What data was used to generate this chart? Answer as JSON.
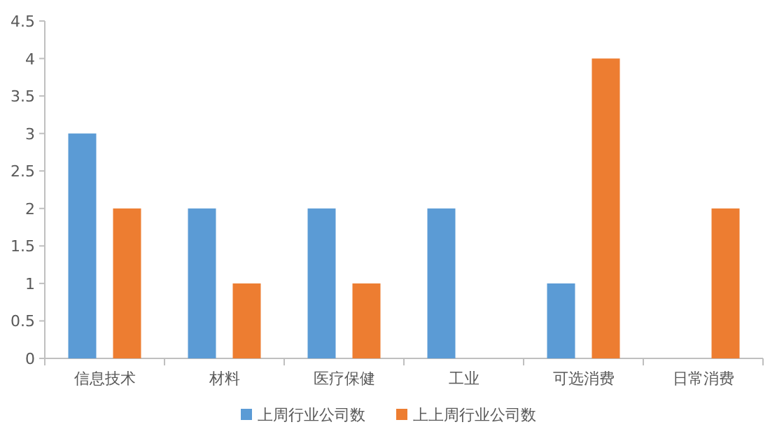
{
  "chart_data": {
    "type": "bar",
    "categories": [
      "信息技术",
      "材料",
      "医疗保健",
      "工业",
      "可选消费",
      "日常消费"
    ],
    "series": [
      {
        "name": "上周行业公司数",
        "color": "#5b9bd5",
        "values": [
          3,
          2,
          2,
          2,
          1,
          null
        ]
      },
      {
        "name": "上上周行业公司数",
        "color": "#ed7d31",
        "values": [
          2,
          1,
          1,
          null,
          4,
          2
        ]
      }
    ],
    "ylim": [
      0,
      4.5
    ],
    "yticks": [
      0,
      0.5,
      1,
      1.5,
      2,
      2.5,
      3,
      3.5,
      4,
      4.5
    ],
    "grid": false,
    "legend": "bottom"
  }
}
